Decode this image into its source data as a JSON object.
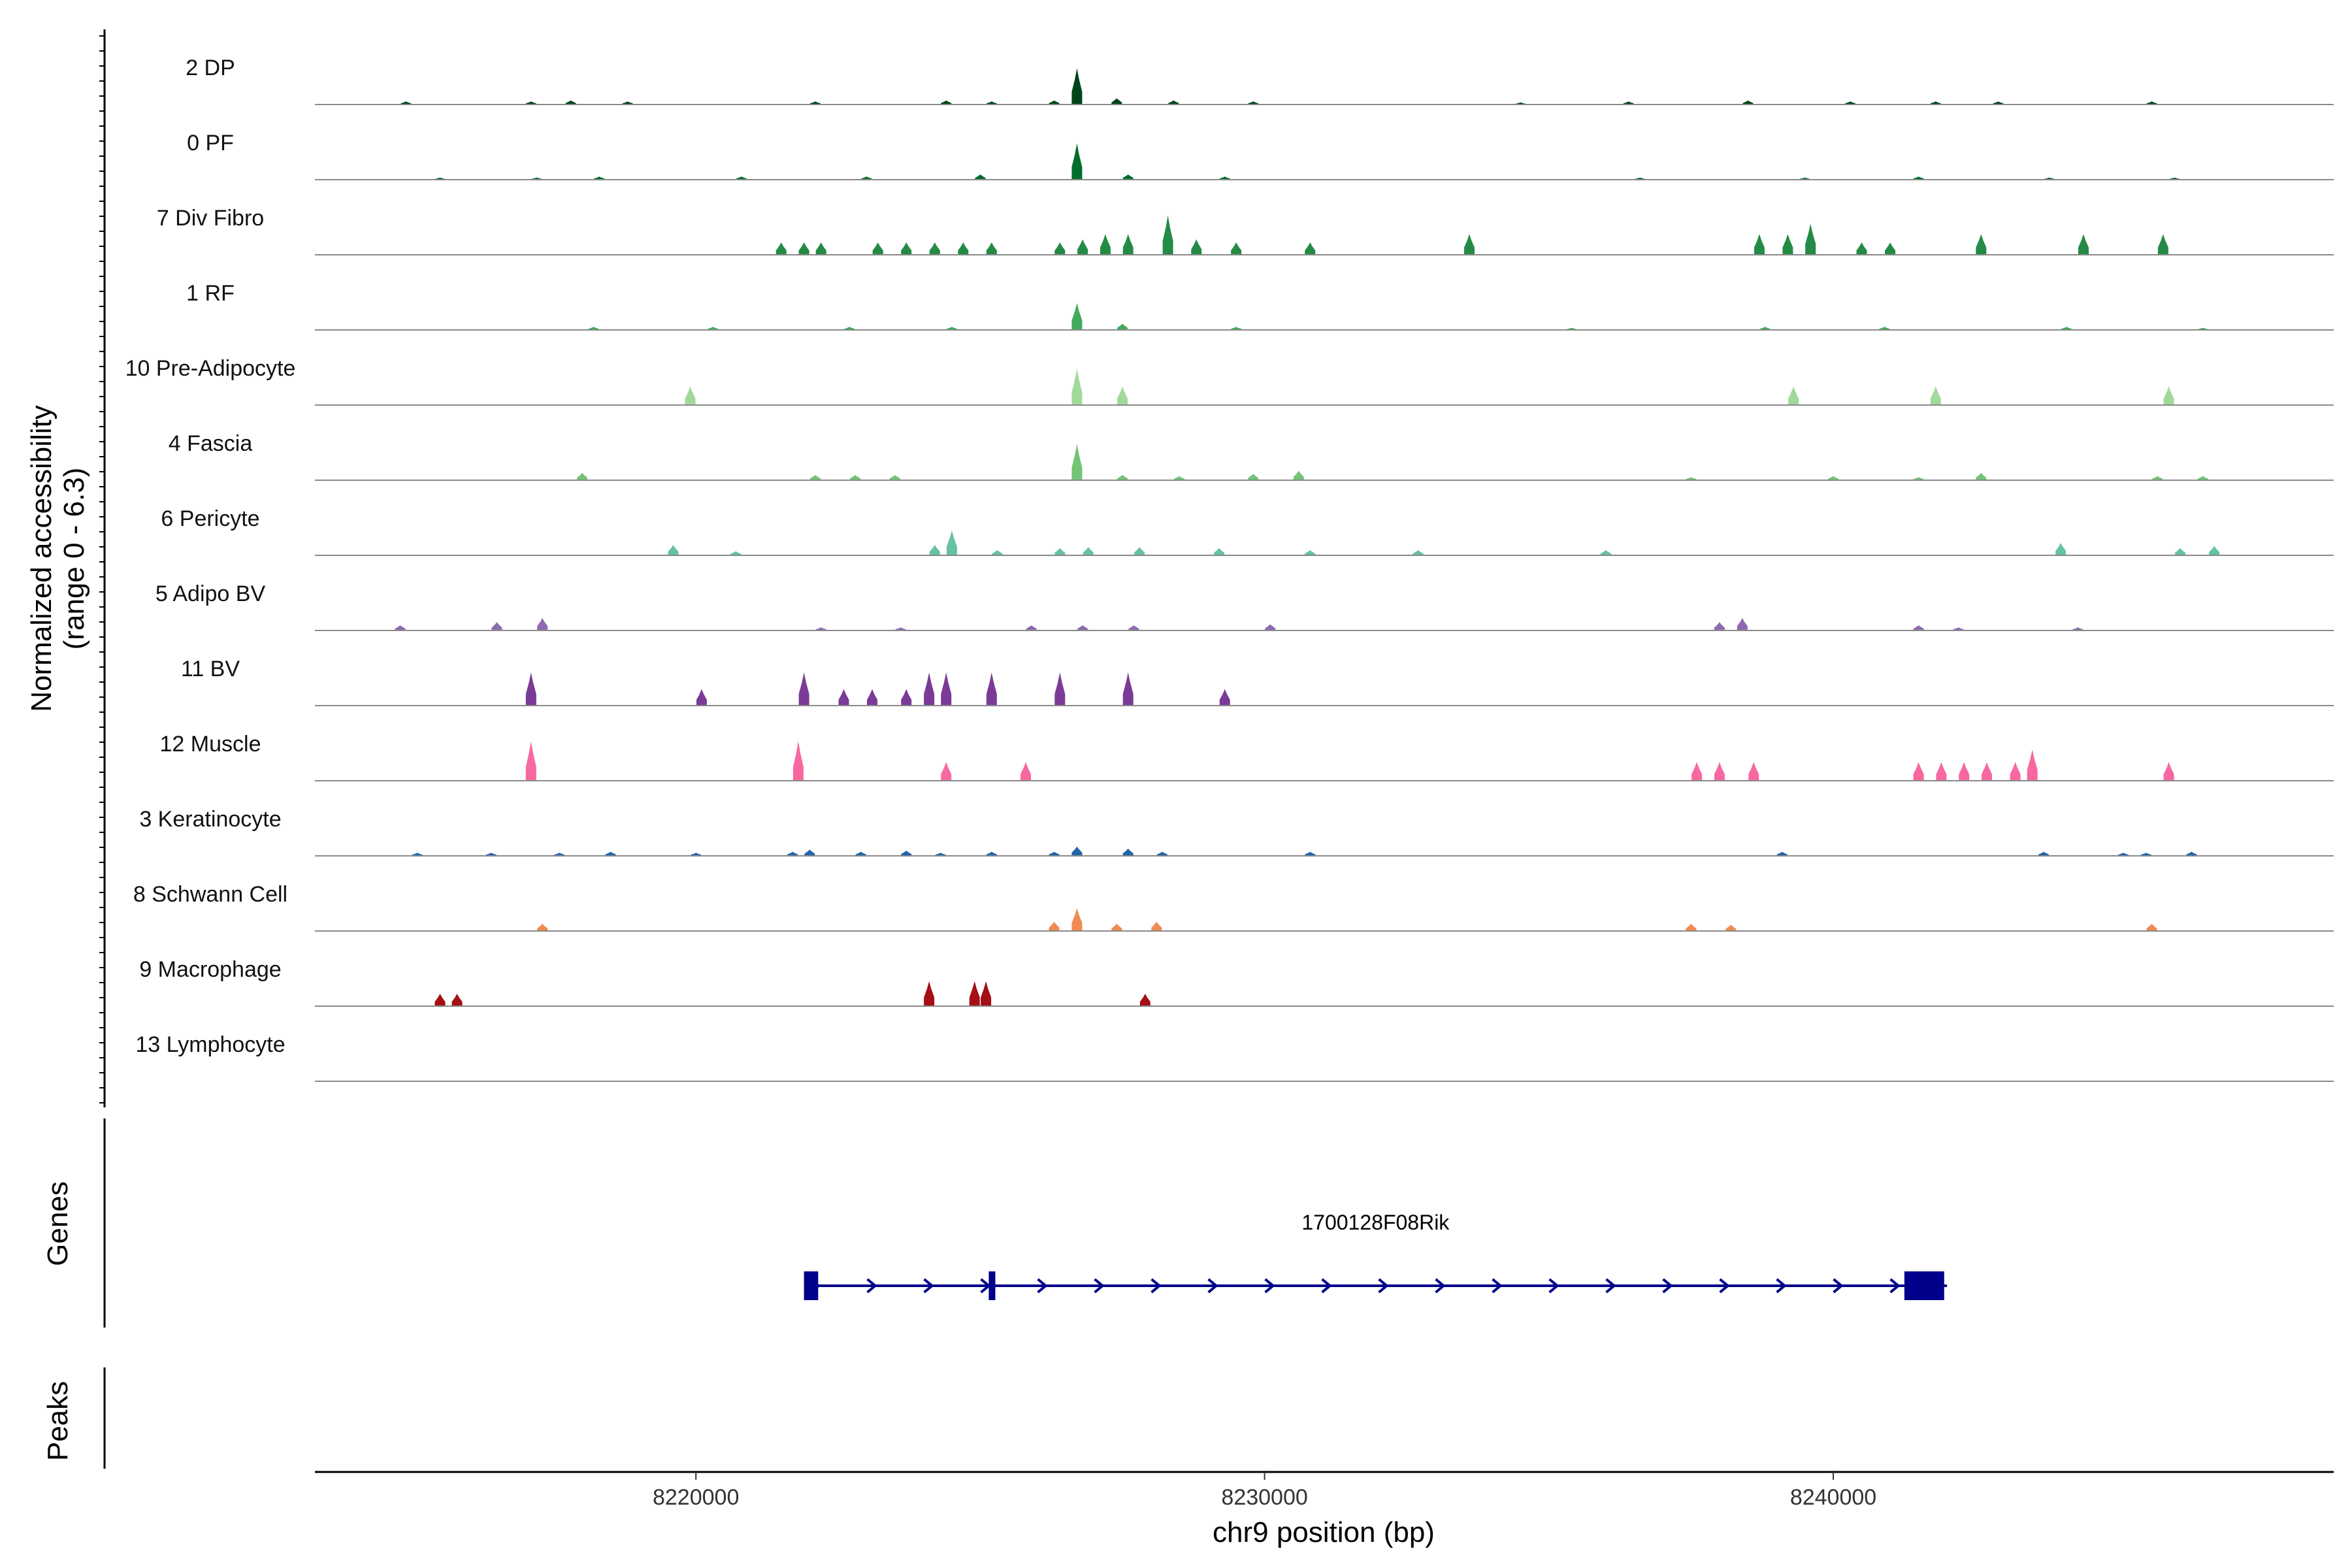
{
  "chart_data": {
    "type": "area",
    "title": "",
    "ylabel_line1": "Normalized accessibility",
    "ylabel_line2": "(range 0 - 6.3)",
    "xlabel": "chr9 position (bp)",
    "xlim": [
      8213300,
      8248800
    ],
    "ylim": [
      0,
      6.3
    ],
    "x_ticks": [
      8220000,
      8230000,
      8240000
    ],
    "x_tick_labels": [
      "8220000",
      "8230000",
      "8240000"
    ],
    "panel_labels": {
      "genes": "Genes",
      "peaks": "Peaks"
    },
    "tracks": [
      {
        "name": "2 DP",
        "color": "#00441b",
        "peaks": [
          [
            8214900,
            0.3
          ],
          [
            8217100,
            0.3
          ],
          [
            8217800,
            0.4
          ],
          [
            8218800,
            0.3
          ],
          [
            8222100,
            0.3
          ],
          [
            8224400,
            0.4
          ],
          [
            8225200,
            0.3
          ],
          [
            8226300,
            0.4
          ],
          [
            8226700,
            3.5
          ],
          [
            8227400,
            0.6
          ],
          [
            8228400,
            0.4
          ],
          [
            8229800,
            0.3
          ],
          [
            8234500,
            0.2
          ],
          [
            8236400,
            0.3
          ],
          [
            8238500,
            0.4
          ],
          [
            8240300,
            0.3
          ],
          [
            8241800,
            0.3
          ],
          [
            8242900,
            0.3
          ],
          [
            8245600,
            0.3
          ]
        ]
      },
      {
        "name": "0 PF",
        "color": "#006d2c",
        "peaks": [
          [
            8215500,
            0.2
          ],
          [
            8217200,
            0.2
          ],
          [
            8218300,
            0.3
          ],
          [
            8220800,
            0.3
          ],
          [
            8223000,
            0.3
          ],
          [
            8225000,
            0.5
          ],
          [
            8226700,
            3.5
          ],
          [
            8227600,
            0.5
          ],
          [
            8229300,
            0.3
          ],
          [
            8236600,
            0.2
          ],
          [
            8239500,
            0.2
          ],
          [
            8241500,
            0.3
          ],
          [
            8243800,
            0.2
          ],
          [
            8246000,
            0.2
          ]
        ]
      },
      {
        "name": "7 Div Fibro",
        "color": "#238b45",
        "peaks": [
          [
            8221500,
            1.2
          ],
          [
            8221900,
            1.2
          ],
          [
            8222200,
            1.2
          ],
          [
            8223200,
            1.2
          ],
          [
            8223700,
            1.2
          ],
          [
            8224200,
            1.2
          ],
          [
            8224700,
            1.2
          ],
          [
            8225200,
            1.2
          ],
          [
            8226400,
            1.2
          ],
          [
            8226800,
            1.5
          ],
          [
            8227200,
            2.0
          ],
          [
            8227600,
            2.0
          ],
          [
            8228300,
            3.8
          ],
          [
            8228800,
            1.5
          ],
          [
            8229500,
            1.2
          ],
          [
            8230800,
            1.2
          ],
          [
            8233600,
            2.0
          ],
          [
            8238700,
            2.0
          ],
          [
            8239200,
            2.0
          ],
          [
            8239600,
            3.0
          ],
          [
            8240500,
            1.2
          ],
          [
            8241000,
            1.2
          ],
          [
            8242600,
            2.0
          ],
          [
            8244400,
            2.0
          ],
          [
            8245800,
            2.0
          ]
        ]
      },
      {
        "name": "1 RF",
        "color": "#41ab5d",
        "peaks": [
          [
            8218200,
            0.3
          ],
          [
            8220300,
            0.3
          ],
          [
            8222700,
            0.3
          ],
          [
            8224500,
            0.3
          ],
          [
            8226700,
            2.6
          ],
          [
            8227500,
            0.6
          ],
          [
            8229500,
            0.3
          ],
          [
            8235400,
            0.2
          ],
          [
            8238800,
            0.3
          ],
          [
            8240900,
            0.3
          ],
          [
            8244100,
            0.3
          ],
          [
            8246500,
            0.2
          ]
        ]
      },
      {
        "name": "10 Pre-Adipocyte",
        "color": "#a1d99b",
        "peaks": [
          [
            8219900,
            1.8
          ],
          [
            8226700,
            3.5
          ],
          [
            8227500,
            1.8
          ],
          [
            8239300,
            1.8
          ],
          [
            8241800,
            1.8
          ],
          [
            8245900,
            1.8
          ]
        ]
      },
      {
        "name": "4 Fascia",
        "color": "#74c476",
        "peaks": [
          [
            8218000,
            0.7
          ],
          [
            8222100,
            0.5
          ],
          [
            8222800,
            0.5
          ],
          [
            8223500,
            0.5
          ],
          [
            8226700,
            3.5
          ],
          [
            8227500,
            0.5
          ],
          [
            8228500,
            0.4
          ],
          [
            8229800,
            0.6
          ],
          [
            8230600,
            0.9
          ],
          [
            8237500,
            0.3
          ],
          [
            8240000,
            0.4
          ],
          [
            8241500,
            0.3
          ],
          [
            8242600,
            0.7
          ],
          [
            8245700,
            0.4
          ],
          [
            8246500,
            0.4
          ]
        ]
      },
      {
        "name": "6 Pericyte",
        "color": "#66c2a4",
        "peaks": [
          [
            8219600,
            1.0
          ],
          [
            8220700,
            0.4
          ],
          [
            8224200,
            1.0
          ],
          [
            8224500,
            2.4
          ],
          [
            8225300,
            0.5
          ],
          [
            8226400,
            0.7
          ],
          [
            8226900,
            0.8
          ],
          [
            8227800,
            0.8
          ],
          [
            8229200,
            0.7
          ],
          [
            8230800,
            0.5
          ],
          [
            8232700,
            0.5
          ],
          [
            8236000,
            0.5
          ],
          [
            8244000,
            1.2
          ],
          [
            8246100,
            0.7
          ],
          [
            8246700,
            0.9
          ]
        ]
      },
      {
        "name": "5 Adipo BV",
        "color": "#8c6bb1",
        "peaks": [
          [
            8214800,
            0.5
          ],
          [
            8216500,
            0.8
          ],
          [
            8217300,
            1.2
          ],
          [
            8222200,
            0.3
          ],
          [
            8223600,
            0.3
          ],
          [
            8225900,
            0.5
          ],
          [
            8226800,
            0.5
          ],
          [
            8227700,
            0.5
          ],
          [
            8230100,
            0.6
          ],
          [
            8238000,
            0.8
          ],
          [
            8238400,
            1.2
          ],
          [
            8241500,
            0.5
          ],
          [
            8242200,
            0.3
          ],
          [
            8244300,
            0.3
          ]
        ]
      },
      {
        "name": "11 BV",
        "color": "#7a3b96",
        "peaks": [
          [
            8217100,
            3.2
          ],
          [
            8220100,
            1.6
          ],
          [
            8221900,
            3.2
          ],
          [
            8222600,
            1.6
          ],
          [
            8223100,
            1.6
          ],
          [
            8223700,
            1.6
          ],
          [
            8224100,
            3.2
          ],
          [
            8224400,
            3.2
          ],
          [
            8225200,
            3.2
          ],
          [
            8226400,
            3.2
          ],
          [
            8227600,
            3.2
          ],
          [
            8229300,
            1.6
          ]
        ]
      },
      {
        "name": "12 Muscle",
        "color": "#f768a1",
        "peaks": [
          [
            8217100,
            3.8
          ],
          [
            8221800,
            3.8
          ],
          [
            8224400,
            1.8
          ],
          [
            8225800,
            1.8
          ],
          [
            8237600,
            1.8
          ],
          [
            8238000,
            1.8
          ],
          [
            8238600,
            1.8
          ],
          [
            8241500,
            1.8
          ],
          [
            8241900,
            1.8
          ],
          [
            8242300,
            1.8
          ],
          [
            8242700,
            1.8
          ],
          [
            8243200,
            1.8
          ],
          [
            8243500,
            3.0
          ],
          [
            8245900,
            1.8
          ]
        ]
      },
      {
        "name": "3 Keratinocyte",
        "color": "#2166ac",
        "peaks": [
          [
            8215100,
            0.3
          ],
          [
            8216400,
            0.3
          ],
          [
            8217600,
            0.3
          ],
          [
            8218500,
            0.4
          ],
          [
            8220000,
            0.3
          ],
          [
            8221700,
            0.4
          ],
          [
            8222000,
            0.6
          ],
          [
            8222900,
            0.4
          ],
          [
            8223700,
            0.5
          ],
          [
            8224300,
            0.3
          ],
          [
            8225200,
            0.4
          ],
          [
            8226300,
            0.4
          ],
          [
            8226700,
            0.9
          ],
          [
            8227600,
            0.7
          ],
          [
            8228200,
            0.4
          ],
          [
            8230800,
            0.4
          ],
          [
            8239100,
            0.4
          ],
          [
            8243700,
            0.4
          ],
          [
            8245100,
            0.3
          ],
          [
            8245500,
            0.3
          ],
          [
            8246300,
            0.4
          ]
        ]
      },
      {
        "name": "8 Schwann Cell",
        "color": "#f08a52",
        "peaks": [
          [
            8217300,
            0.7
          ],
          [
            8226300,
            0.9
          ],
          [
            8226700,
            2.2
          ],
          [
            8227400,
            0.7
          ],
          [
            8228100,
            0.9
          ],
          [
            8237500,
            0.7
          ],
          [
            8238200,
            0.6
          ],
          [
            8245600,
            0.7
          ]
        ]
      },
      {
        "name": "9 Macrophage",
        "color": "#a50f15",
        "peaks": [
          [
            8215500,
            1.2
          ],
          [
            8215800,
            1.2
          ],
          [
            8224100,
            2.4
          ],
          [
            8224900,
            2.4
          ],
          [
            8225100,
            2.4
          ],
          [
            8227900,
            1.2
          ]
        ]
      },
      {
        "name": "13 Lymphocyte",
        "color": "#444444",
        "peaks": []
      }
    ],
    "gene": {
      "name": "1700128F08Rik",
      "start": 8221900,
      "end": 8242000,
      "strand": "+",
      "exons": [
        [
          8221900,
          8222150
        ],
        [
          8225150,
          8225250
        ],
        [
          8241250,
          8241950
        ]
      ],
      "color": "#00008b"
    }
  }
}
